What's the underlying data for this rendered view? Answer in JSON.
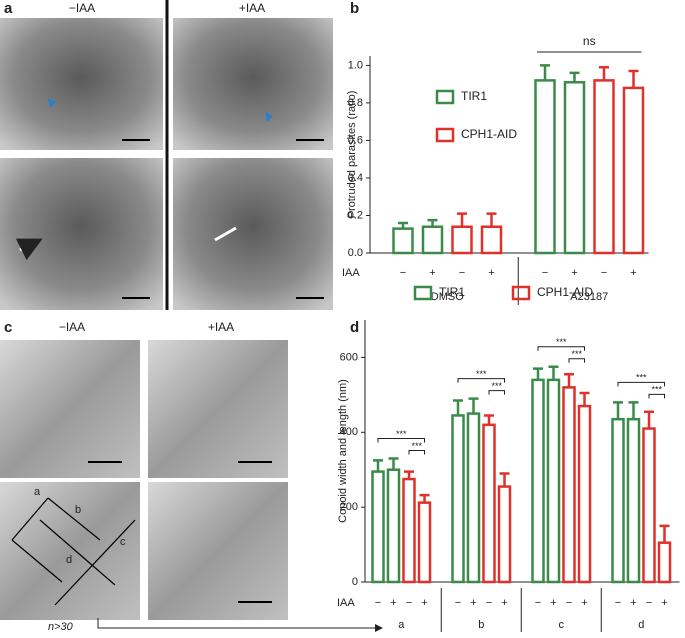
{
  "panel_labels": [
    "a",
    "b",
    "c",
    "d"
  ],
  "panel_a": {
    "conditions": [
      "−IAA",
      "+IAA"
    ]
  },
  "panel_c": {
    "conditions": [
      "−IAA",
      "+IAA"
    ],
    "diagram_labels": [
      "a",
      "b",
      "c",
      "d"
    ],
    "sample_note": "n>30"
  },
  "chart_data": [
    {
      "type": "bar",
      "y_label": "Protruded parasites (ratio)",
      "row_label": "IAA",
      "categories": [
        "−",
        "+",
        "−",
        "+",
        "−",
        "+",
        "−",
        "+"
      ],
      "groups": [
        "DMSO",
        "A23187"
      ],
      "series": [
        {
          "name": "TIR1",
          "color": "#3a8a4a",
          "values": [
            0.13,
            0.14,
            null,
            null,
            0.92,
            0.91,
            null,
            null
          ],
          "errors": [
            0.03,
            0.035,
            null,
            null,
            0.08,
            0.05,
            null,
            null
          ]
        },
        {
          "name": "CPH1-AID",
          "color": "#e0302a",
          "values": [
            null,
            null,
            0.14,
            0.14,
            null,
            null,
            0.92,
            0.88
          ],
          "errors": [
            null,
            null,
            0.07,
            0.07,
            null,
            null,
            0.07,
            0.09
          ]
        }
      ],
      "ylim": [
        0,
        1.05
      ],
      "yticks": [
        {
          "value": 0,
          "label": "0.0"
        },
        {
          "value": 0.2,
          "label": "0.2"
        },
        {
          "value": 0.4,
          "label": "0.4"
        },
        {
          "value": 0.6,
          "label": "0.6"
        },
        {
          "value": 0.8,
          "label": "0.8"
        },
        {
          "value": 1,
          "label": "1.0"
        }
      ],
      "annotation": "ns"
    },
    {
      "type": "bar",
      "y_label": "Conoid width and length (nm)",
      "row_label": "IAA",
      "categories": [
        "−",
        "+",
        "−",
        "+",
        "−",
        "+",
        "−",
        "+",
        "−",
        "+",
        "−",
        "+",
        "−",
        "+",
        "−",
        "+"
      ],
      "groups": [
        "a",
        "b",
        "c",
        "d"
      ],
      "series": [
        {
          "name": "TIR1",
          "color": "#3a8a4a",
          "values": [
            295,
            300,
            null,
            null,
            445,
            450,
            null,
            null,
            540,
            540,
            null,
            null,
            435,
            435,
            null,
            null
          ],
          "errors": [
            30,
            30,
            null,
            null,
            40,
            40,
            null,
            null,
            30,
            35,
            null,
            null,
            45,
            45,
            null,
            null
          ]
        },
        {
          "name": "CPH1-AID",
          "color": "#e0302a",
          "values": [
            null,
            null,
            275,
            212,
            null,
            null,
            420,
            255,
            null,
            null,
            520,
            470,
            null,
            null,
            410,
            105
          ],
          "errors": [
            null,
            null,
            20,
            20,
            null,
            null,
            25,
            35,
            null,
            null,
            35,
            35,
            null,
            null,
            45,
            45
          ]
        }
      ],
      "ylim": [
        0,
        700
      ],
      "yticks": [
        0,
        200,
        400,
        600
      ],
      "significance": [
        [
          "***",
          "***"
        ],
        [
          "***",
          "***"
        ],
        [
          "***",
          "***"
        ],
        [
          "***",
          "***"
        ]
      ]
    }
  ]
}
